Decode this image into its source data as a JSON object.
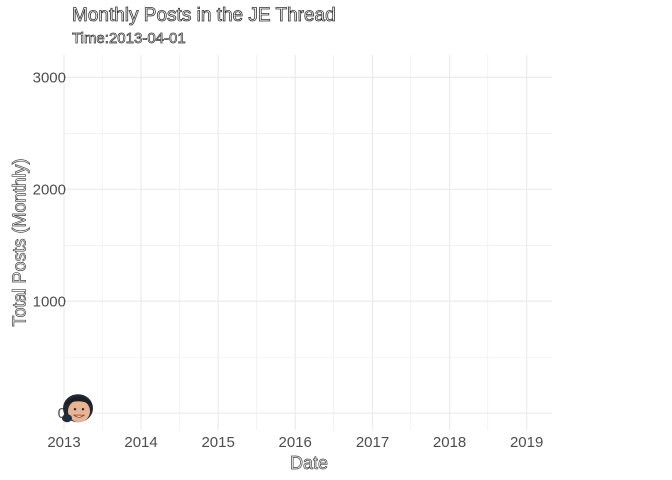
{
  "chart_data": {
    "type": "line",
    "title": "Monthly Posts in the JE Thread",
    "subtitle_prefix": "Time:",
    "subtitle_value": "2013-04-01",
    "xlabel": "Date",
    "ylabel": "Total Posts (Monthly)",
    "xlim": [
      "2013-01-01",
      "2019-05-01"
    ],
    "ylim": [
      -150,
      3200
    ],
    "x_ticks": [
      "2013",
      "2014",
      "2015",
      "2016",
      "2017",
      "2018",
      "2019"
    ],
    "y_ticks": [
      0,
      1000,
      2000,
      3000
    ],
    "grid": true,
    "legend": "none",
    "series": [
      {
        "points": [
          {
            "x": "2013-04-01",
            "y": 0
          }
        ]
      }
    ],
    "marker": "face-avatar",
    "colors": {
      "grid": "#ebebeb",
      "axis_text": "#4d4d4d",
      "background": "#ffffff"
    }
  }
}
